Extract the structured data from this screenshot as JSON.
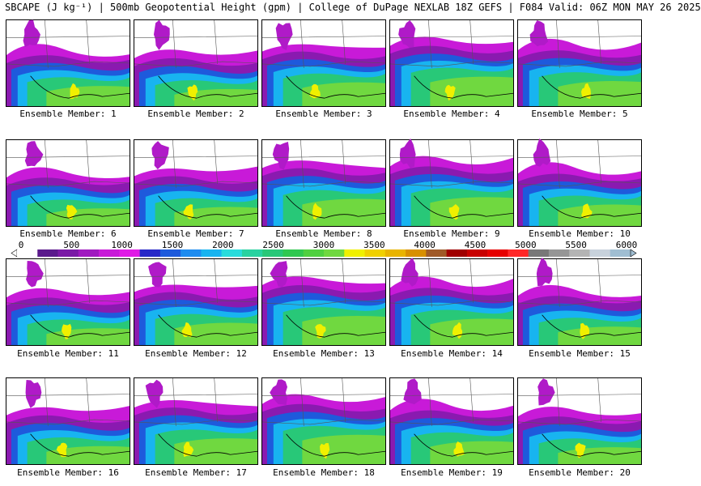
{
  "title": "SBCAPE (J kg⁻¹) | 500mb Geopotential Height (gpm) | College of DuPage NEXLAB 18Z GEFS | F084 Valid: 06Z MON MAY 26 2025",
  "colorbar": {
    "ticks": [
      "0",
      "500",
      "1000",
      "1500",
      "2000",
      "2500",
      "3000",
      "3500",
      "4000",
      "4500",
      "5000",
      "5500",
      "6000"
    ],
    "colors": [
      "#ffffff",
      "#5a1a8c",
      "#7a1aa6",
      "#a01ac0",
      "#c81ad8",
      "#e01ae6",
      "#2828c8",
      "#1e5adc",
      "#1e8cf0",
      "#18b4f0",
      "#28dcdc",
      "#28d2a0",
      "#28c878",
      "#30c850",
      "#50d040",
      "#70d840",
      "#f0f000",
      "#f0d000",
      "#e8b400",
      "#d89000",
      "#a05a28",
      "#a00000",
      "#c80000",
      "#e60000",
      "#ff2828",
      "#787878",
      "#969696",
      "#b4b4b4",
      "#c8d2dc",
      "#a0bed2"
    ]
  },
  "members": [
    {
      "label": "Ensemble Member: 1"
    },
    {
      "label": "Ensemble Member: 2"
    },
    {
      "label": "Ensemble Member: 3"
    },
    {
      "label": "Ensemble Member: 4"
    },
    {
      "label": "Ensemble Member: 5"
    },
    {
      "label": "Ensemble Member: 6"
    },
    {
      "label": "Ensemble Member: 7"
    },
    {
      "label": "Ensemble Member: 8"
    },
    {
      "label": "Ensemble Member: 9"
    },
    {
      "label": "Ensemble Member: 10"
    },
    {
      "label": "Ensemble Member: 11"
    },
    {
      "label": "Ensemble Member: 12"
    },
    {
      "label": "Ensemble Member: 13"
    },
    {
      "label": "Ensemble Member: 14"
    },
    {
      "label": "Ensemble Member: 15"
    },
    {
      "label": "Ensemble Member: 16"
    },
    {
      "label": "Ensemble Member: 17"
    },
    {
      "label": "Ensemble Member: 18"
    },
    {
      "label": "Ensemble Member: 19"
    },
    {
      "label": "Ensemble Member: 20"
    }
  ]
}
